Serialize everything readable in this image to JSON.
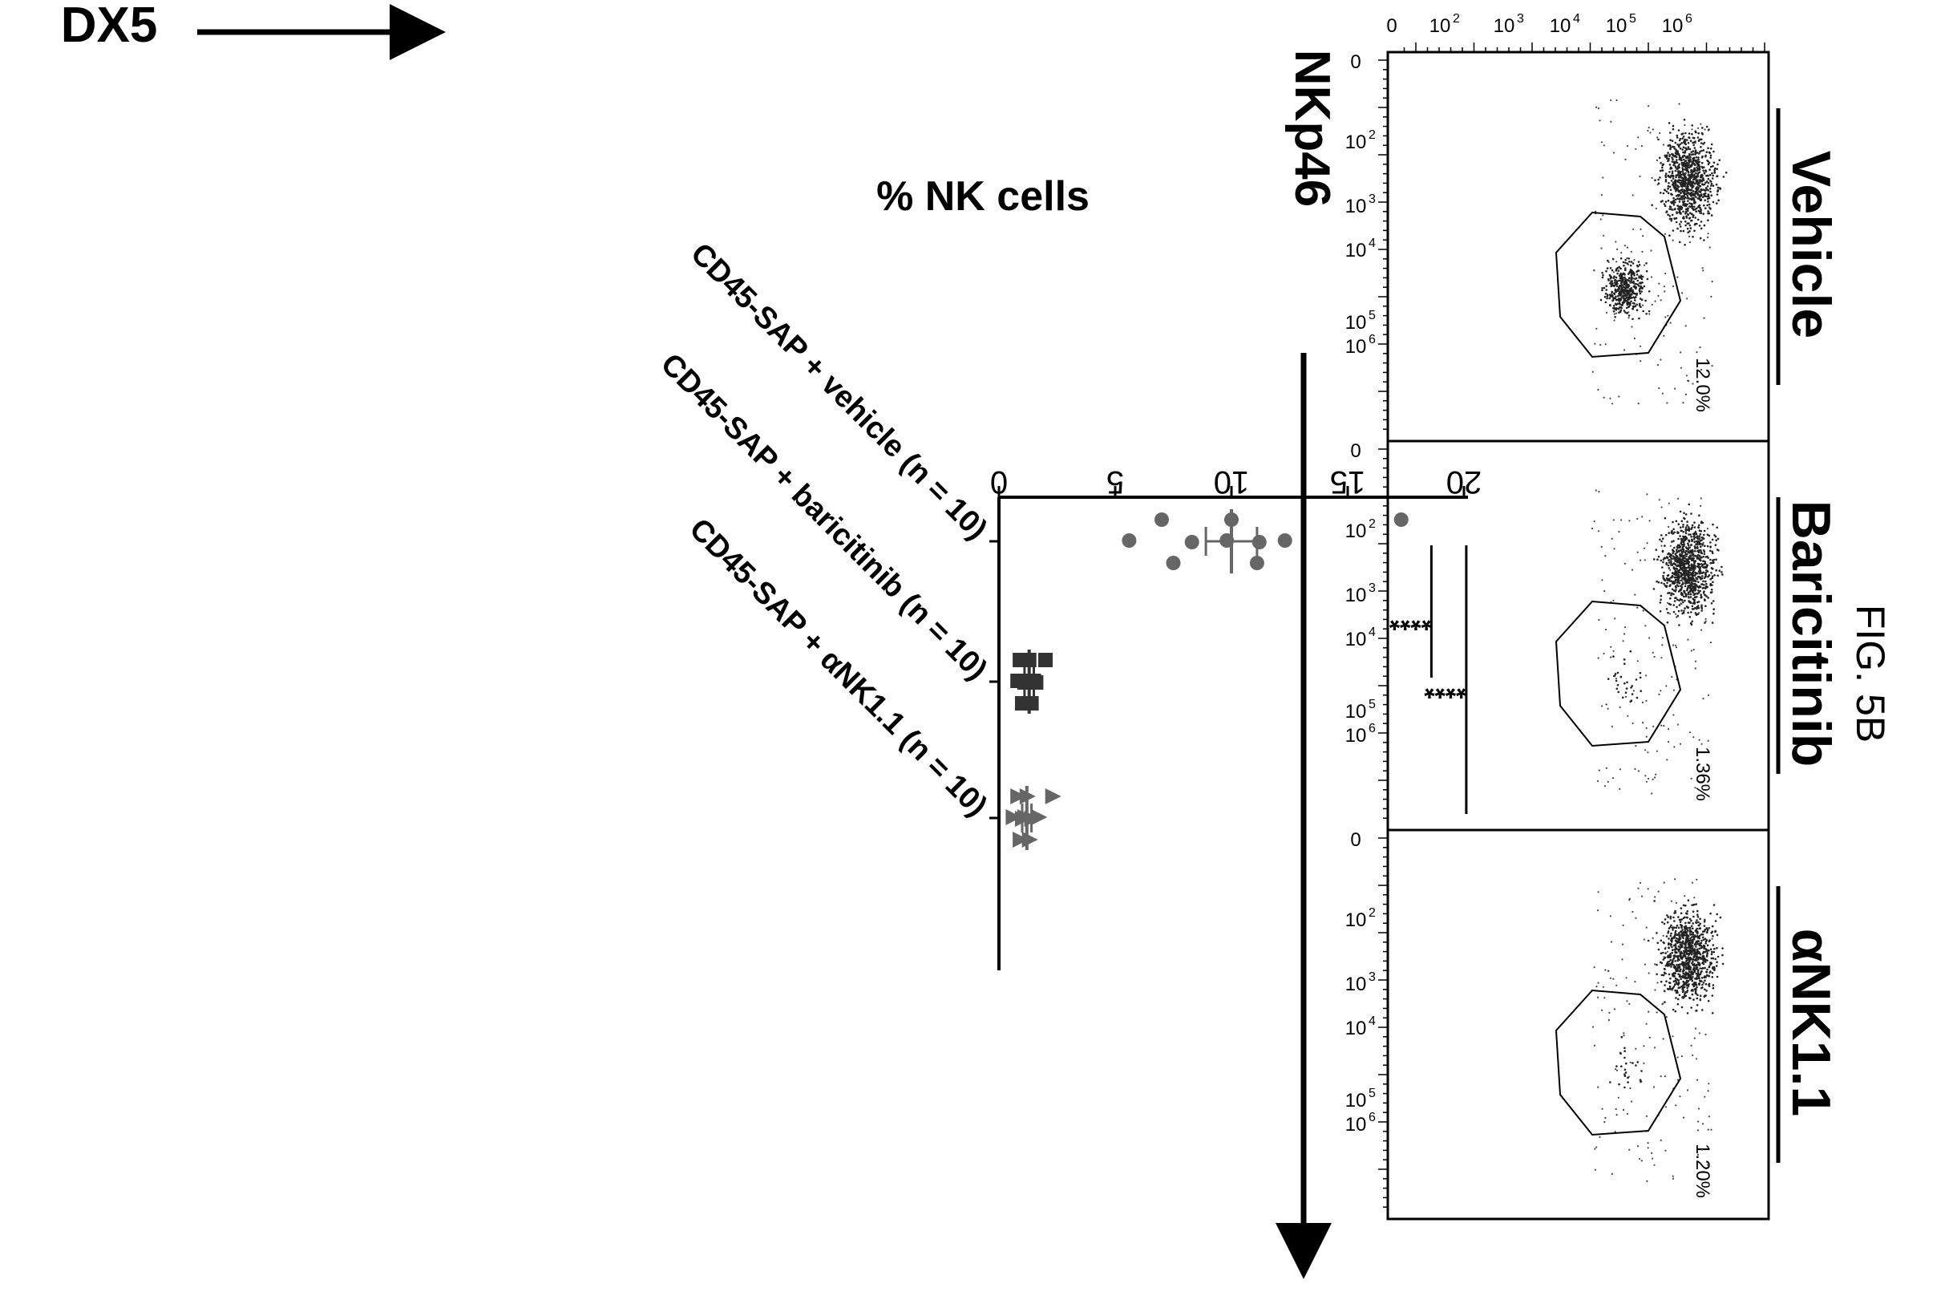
{
  "figure_label": "FIG. 5B",
  "flow": {
    "y_axis_label": "DX5",
    "x_axis_label": "NKp46",
    "axis_ticks": [
      {
        "base": "0",
        "exp": ""
      },
      {
        "base": "10",
        "exp": "2"
      },
      {
        "base": "10",
        "exp": "3"
      },
      {
        "base": "10",
        "exp": "4"
      },
      {
        "base": "10",
        "exp": "5"
      },
      {
        "base": "10",
        "exp": "6"
      }
    ],
    "panels": [
      {
        "title": "Vehicle",
        "gate_percent": "12.0%"
      },
      {
        "title": "Baricitinib",
        "gate_percent": "1.36%"
      },
      {
        "title": "αNK1.1",
        "gate_percent": "1.20%"
      }
    ]
  },
  "chart_data": {
    "type": "scatter",
    "ylabel": "% NK cells",
    "ylim": [
      0,
      20
    ],
    "yticks": [
      0,
      5,
      10,
      15,
      20
    ],
    "categories": [
      "CD45-SAP + vehicle (n = 10)",
      "CD45-SAP + baricitinib (n = 10)",
      "CD45-SAP + αNK1.1 (n = 10)"
    ],
    "series": [
      {
        "marker": "circle",
        "color": "#666666",
        "values": [
          17.3,
          12.3,
          11.2,
          11.1,
          10.0,
          9.8,
          8.3,
          7.5,
          7.0,
          5.6
        ],
        "mean": 10.0,
        "error_low": 8.9,
        "error_high": 11.1
      },
      {
        "marker": "square",
        "color": "#333333",
        "values": [
          2.0,
          1.5,
          1.6,
          1.4,
          1.3,
          1.2,
          1.1,
          1.0,
          0.9,
          0.8
        ],
        "mean": 1.3,
        "error_low": 1.1,
        "error_high": 1.5
      },
      {
        "marker": "triangle",
        "color": "#666666",
        "values": [
          2.3,
          1.7,
          1.4,
          1.3,
          1.2,
          1.1,
          1.0,
          0.9,
          0.8,
          0.6
        ],
        "mean": 1.2,
        "error_low": 1.0,
        "error_high": 1.4
      }
    ],
    "significance": [
      {
        "label": "****",
        "from": 0,
        "to": 1,
        "y": 18.6
      },
      {
        "label": "****",
        "from": 0,
        "to": 2,
        "y": 20.1
      }
    ]
  }
}
